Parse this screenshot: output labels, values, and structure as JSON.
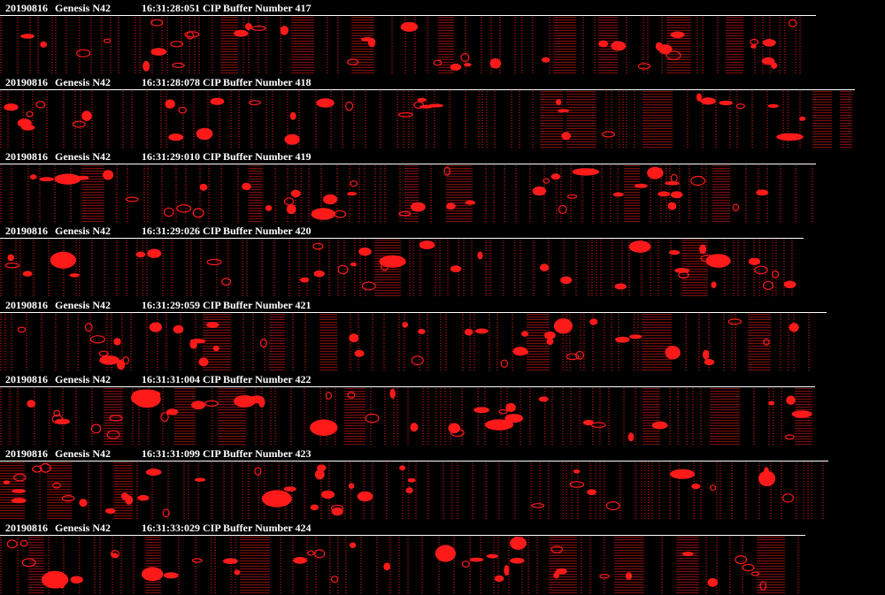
{
  "buffers": [
    {
      "date": "20190816",
      "probe": "Genesis N42",
      "time_label": "16:31:28:051 CIP Buffer Number 417"
    },
    {
      "date": "20190816",
      "probe": "Genesis N42",
      "time_label": "16:31:28:078 CIP Buffer Number 418"
    },
    {
      "date": "20190816",
      "probe": "Genesis N42",
      "time_label": "16:31:29:010 CIP Buffer Number 419"
    },
    {
      "date": "20190816",
      "probe": "Genesis N42",
      "time_label": "16:31:29:026 CIP Buffer Number 420"
    },
    {
      "date": "20190816",
      "probe": "Genesis N42",
      "time_label": "16:31:29:059 CIP Buffer Number 421"
    },
    {
      "date": "20190816",
      "probe": "Genesis N42",
      "time_label": "16:31:31:004 CIP Buffer Number 422"
    },
    {
      "date": "20190816",
      "probe": "Genesis N42",
      "time_label": "16:31:31:099 CIP Buffer Number 423"
    },
    {
      "date": "20190816",
      "probe": "Genesis N42",
      "time_label": "16:31:33:029 CIP Buffer Number 424"
    }
  ],
  "colors": {
    "background": "#000000",
    "text": "#ffffff",
    "particle": "#ff1a1a",
    "rule": "#ffffff"
  }
}
